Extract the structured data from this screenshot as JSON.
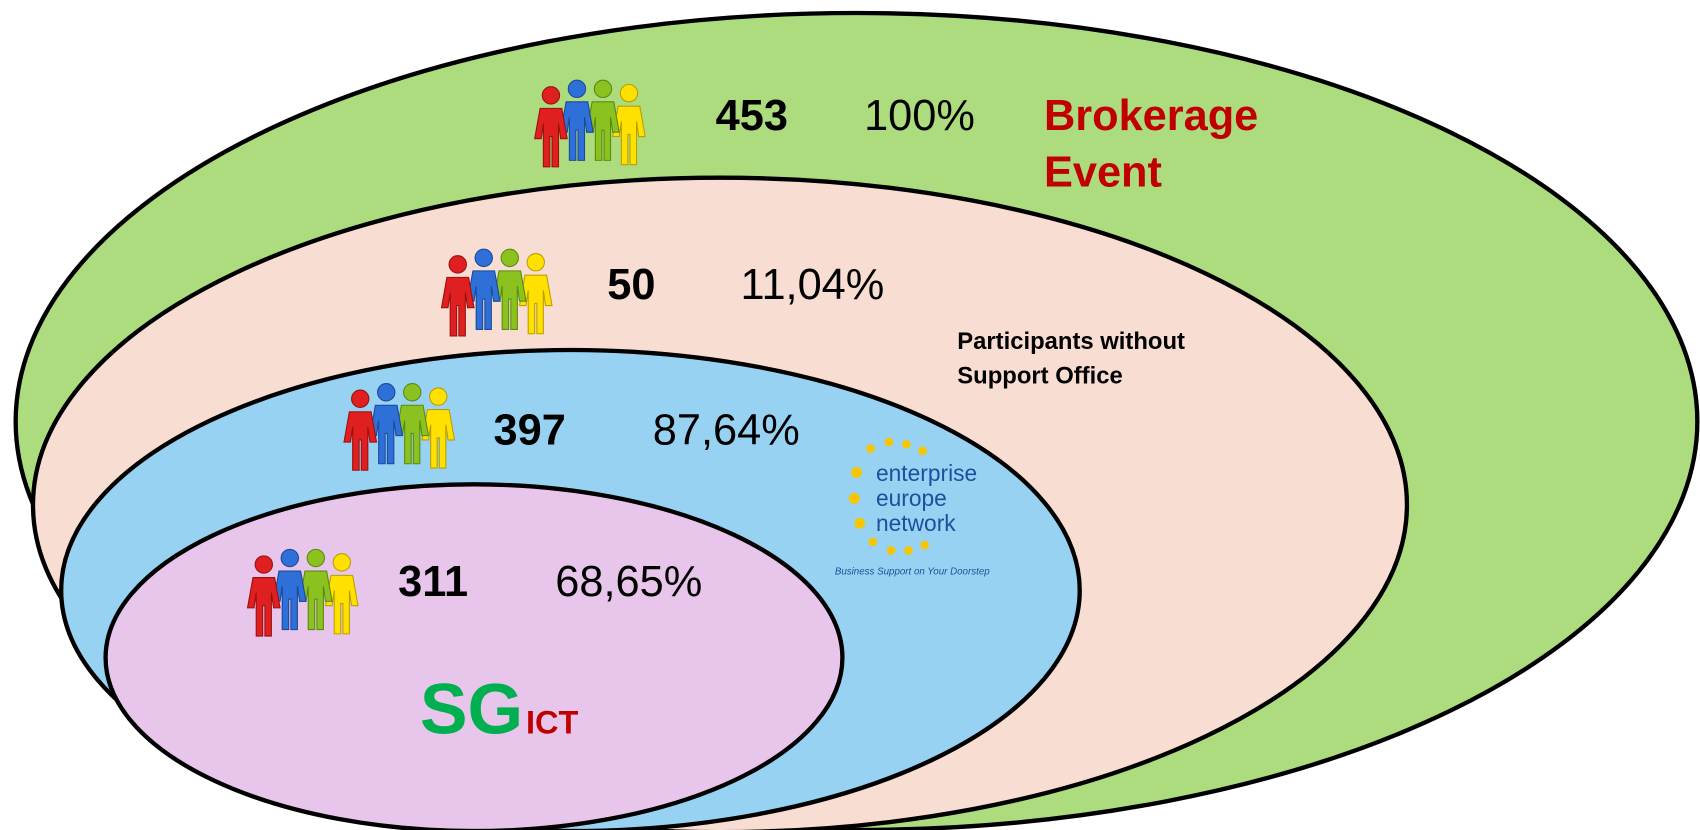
{
  "groups": [
    {
      "count": 453,
      "percent": "100%",
      "label": [
        "Brokerage",
        "Event"
      ]
    },
    {
      "count": 50,
      "percent": "11,04%",
      "label": [
        "Participants without",
        "Support Office"
      ]
    },
    {
      "count": 397,
      "percent": "87,64%",
      "logo": {
        "lines": [
          "enterprise",
          "europe",
          "network"
        ],
        "tagline": "Business Support on Your Doorstep"
      }
    },
    {
      "count": 311,
      "percent": "68,65%",
      "brand": {
        "main": "SG",
        "sub": "ICT"
      }
    }
  ]
}
